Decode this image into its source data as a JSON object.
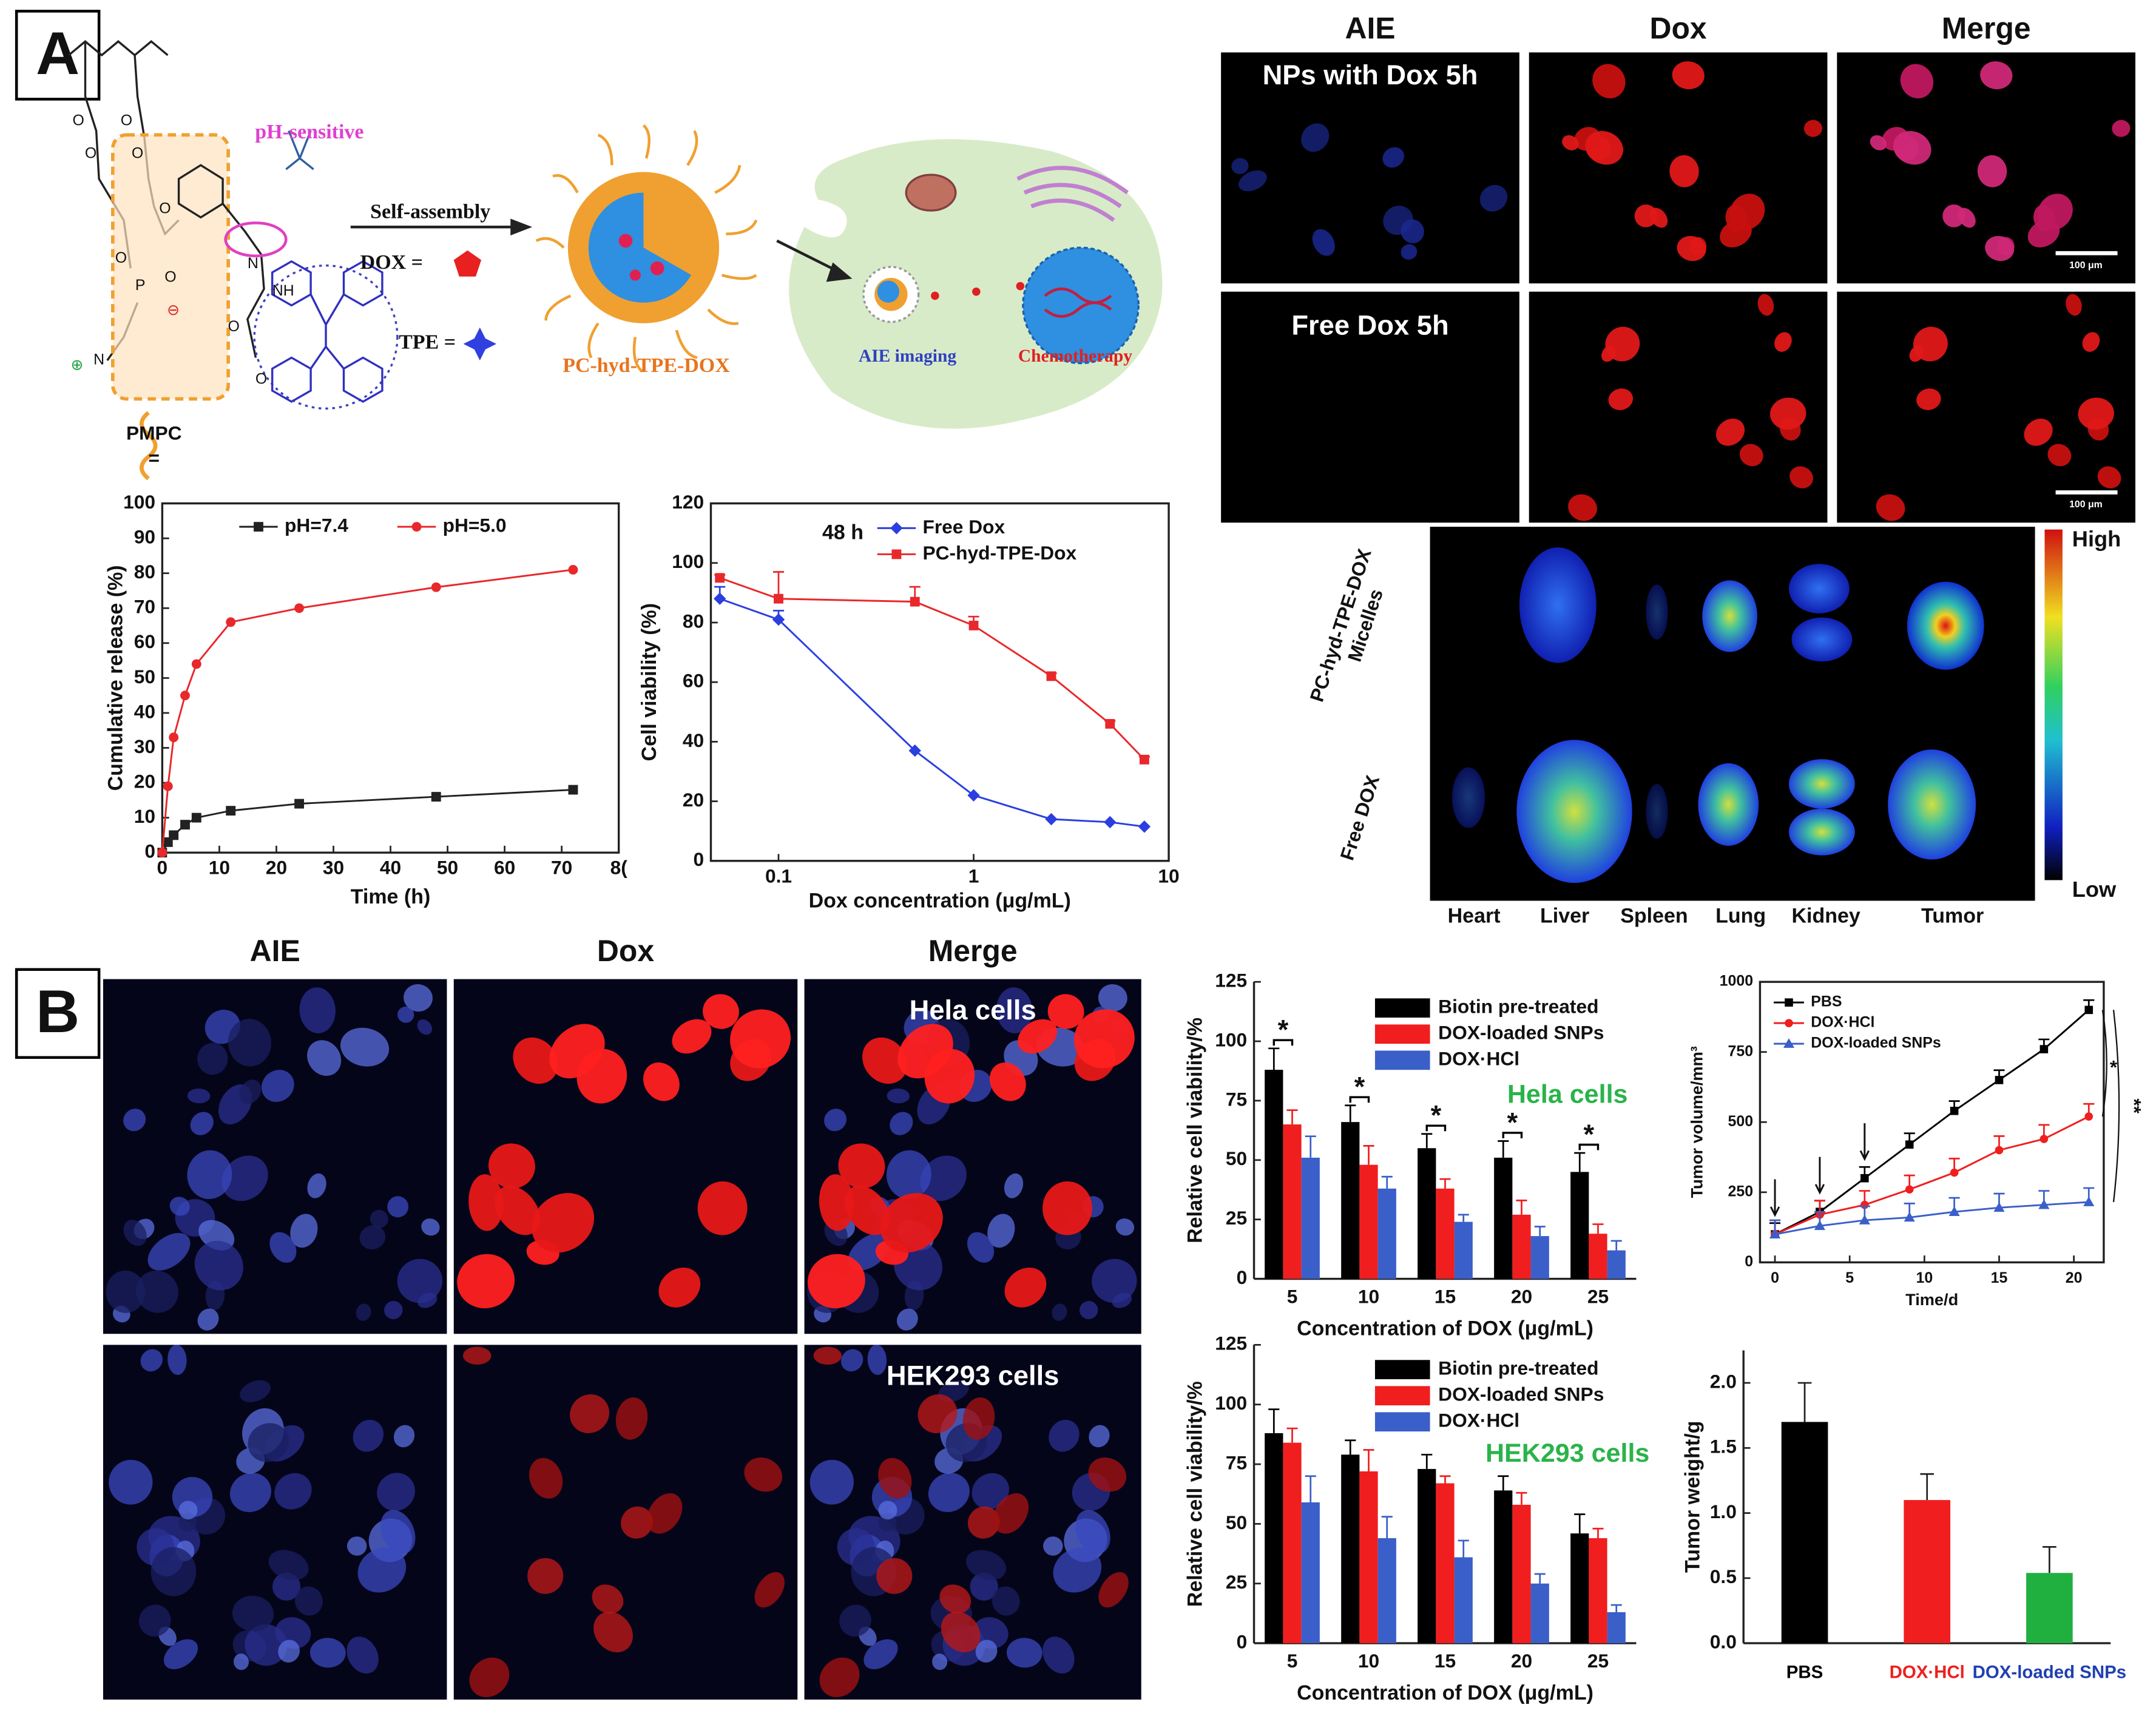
{
  "panel_labels": [
    "A",
    "B"
  ],
  "scheme": {
    "ph_label": "pH-sensitive",
    "assembly_label": "Self-assembly",
    "dox_label": "DOX =",
    "tpe_label": "TPE =",
    "polymer_label": "PMPC",
    "equals": "=",
    "micelle_label": "PC-hyd-TPE-DOX",
    "imaging_label": "AIE imaging",
    "therapy_label": "Chemotherapy",
    "atoms": [
      "O",
      "O",
      "O",
      "O",
      "P",
      "O",
      "O",
      "⊖",
      "N",
      "⊕",
      "O",
      "N",
      "NH",
      "O",
      "O"
    ]
  },
  "micrographs_a": {
    "columns": [
      "AIE",
      "Dox",
      "Merge"
    ],
    "rows": [
      "NPs with Dox 5h",
      "Free Dox 5h"
    ],
    "scale_bars": [
      "100 μm",
      "100 μm"
    ]
  },
  "biodistribution": {
    "row_labels": [
      [
        "PC-hyd-TPE-DOX",
        "Micelles"
      ],
      [
        "Free DOX"
      ]
    ],
    "organs": [
      "Heart",
      "Liver",
      "Spleen",
      "Lung",
      "Kidney",
      "Tumor"
    ],
    "colorbar": [
      "High",
      "Low"
    ]
  },
  "micrographs_b": {
    "columns": [
      "AIE",
      "Dox",
      "Merge"
    ],
    "rows": [
      "Hela cells",
      "HEK293 cells"
    ]
  },
  "chart_data": [
    {
      "type": "line",
      "xlabel": "Time (h)",
      "ylabel": "Cumulative release (%)",
      "x": [
        0,
        1,
        2,
        4,
        6,
        12,
        24,
        48,
        72
      ],
      "series": [
        {
          "name": "pH=7.4",
          "color": "#222222",
          "marker": "square",
          "values": [
            0,
            3,
            5,
            8,
            10,
            12,
            14,
            16,
            18
          ]
        },
        {
          "name": "pH=5.0",
          "color": "#e8282b",
          "marker": "circle",
          "values": [
            0,
            19,
            33,
            45,
            54,
            66,
            70,
            76,
            81
          ]
        }
      ],
      "xlim": [
        0,
        80
      ],
      "ylim": [
        0,
        100
      ],
      "xticks": [
        0,
        10,
        20,
        30,
        40,
        50,
        60,
        70,
        {
          "value": 80,
          "label": "8("
        }
      ],
      "yticks": [
        0,
        10,
        20,
        30,
        40,
        50,
        60,
        70,
        80,
        90,
        100
      ],
      "legend": "upper center"
    },
    {
      "type": "line",
      "xscale": "log",
      "annotation": "48 h",
      "xlabel": "Dox concentration (μg/mL)",
      "ylabel": "Cell viability (%)",
      "x": [
        0.05,
        0.1,
        0.5,
        1,
        2.5,
        5,
        7.5
      ],
      "series": [
        {
          "name": "Free Dox",
          "color": "#2b3fe0",
          "marker": "diamond",
          "values": [
            88,
            81,
            37,
            22,
            14,
            13,
            11.5
          ],
          "errors": [
            4,
            3,
            0,
            0,
            0,
            0,
            0
          ]
        },
        {
          "name": "PC-hyd-TPE-Dox",
          "color": "#e8282b",
          "marker": "square",
          "values": [
            95,
            88,
            87,
            79,
            62,
            46,
            34
          ],
          "errors": [
            1,
            9,
            5,
            3,
            1,
            1,
            1
          ]
        }
      ],
      "xlim": [
        0.045,
        10
      ],
      "ylim": [
        0,
        120
      ],
      "xticks": [
        0.1,
        1,
        10
      ],
      "yticks": [
        0,
        20,
        40,
        60,
        80,
        100,
        120
      ],
      "legend": "upper right"
    },
    {
      "type": "bar",
      "annotation": "Hela cells",
      "annotation_color": "#2bb34a",
      "xlabel": "Concentration of DOX (μg/mL)",
      "ylabel": "Relative cell viability/%",
      "categories": [
        "5",
        "10",
        "15",
        "20",
        "25"
      ],
      "series": [
        {
          "name": "Biotin pre-treated",
          "color": "#000000",
          "values": [
            88,
            66,
            55,
            51,
            45
          ],
          "errors": [
            9,
            7,
            6,
            7,
            8
          ]
        },
        {
          "name": "DOX-loaded SNPs",
          "color": "#f01e1e",
          "values": [
            65,
            48,
            38,
            27,
            19
          ],
          "errors": [
            6,
            8,
            4,
            6,
            4
          ]
        },
        {
          "name": "DOX·HCl",
          "color": "#3a5fc8",
          "values": [
            51,
            38,
            24,
            18,
            12
          ],
          "errors": [
            9,
            5,
            3,
            4,
            4
          ]
        }
      ],
      "ylim": [
        0,
        125
      ],
      "yticks": [
        0,
        25,
        50,
        75,
        100,
        125
      ],
      "legend": "upper right",
      "significance": [
        "*",
        "*",
        "*",
        "*",
        "*"
      ]
    },
    {
      "type": "bar",
      "annotation": "HEK293 cells",
      "annotation_color": "#2bb34a",
      "xlabel": "Concentration of DOX (μg/mL)",
      "ylabel": "Relative cell viability/%",
      "categories": [
        "5",
        "10",
        "15",
        "20",
        "25"
      ],
      "series": [
        {
          "name": "Biotin pre-treated",
          "color": "#000000",
          "values": [
            88,
            79,
            73,
            64,
            46
          ],
          "errors": [
            10,
            6,
            6,
            6,
            8
          ]
        },
        {
          "name": "DOX-loaded SNPs",
          "color": "#f01e1e",
          "values": [
            84,
            72,
            67,
            58,
            44
          ],
          "errors": [
            6,
            9,
            3,
            5,
            4
          ]
        },
        {
          "name": "DOX·HCl",
          "color": "#3a5fc8",
          "values": [
            59,
            44,
            36,
            25,
            13
          ],
          "errors": [
            11,
            9,
            7,
            4,
            3
          ]
        }
      ],
      "ylim": [
        0,
        125
      ],
      "yticks": [
        0,
        25,
        50,
        75,
        100,
        125
      ],
      "legend": "upper right"
    },
    {
      "type": "line",
      "xlabel": "Time/d",
      "ylabel": "Tumor volume/mm³",
      "x": [
        0,
        3,
        6,
        9,
        12,
        15,
        18,
        21
      ],
      "series": [
        {
          "name": "PBS",
          "color": "#000000",
          "marker": "square",
          "values": [
            100,
            180,
            300,
            420,
            540,
            650,
            760,
            900
          ],
          "errors": [
            40,
            40,
            40,
            40,
            35,
            35,
            35,
            35
          ]
        },
        {
          "name": "DOX·HCl",
          "color": "#f01e1e",
          "marker": "circle",
          "values": [
            100,
            170,
            205,
            260,
            320,
            400,
            440,
            520
          ],
          "errors": [
            50,
            50,
            50,
            50,
            50,
            50,
            50,
            45
          ]
        },
        {
          "name": "DOX-loaded SNPs",
          "color": "#3a5fc8",
          "marker": "triangle",
          "values": [
            100,
            130,
            150,
            160,
            180,
            195,
            205,
            215
          ],
          "errors": [
            50,
            50,
            50,
            50,
            50,
            50,
            50,
            50
          ]
        }
      ],
      "xlim": [
        -1,
        22
      ],
      "ylim": [
        0,
        1000
      ],
      "xticks": [
        0,
        5,
        10,
        15,
        20
      ],
      "yticks": [
        0,
        250,
        500,
        750,
        1000
      ],
      "legend": "upper left",
      "dose_days": [
        0,
        3,
        6
      ],
      "significance": [
        "*",
        "**"
      ]
    },
    {
      "type": "bar",
      "ylabel": "Tumor weight/g",
      "categories": [
        "PBS",
        "DOX·HCl",
        "DOX-loaded SNPs"
      ],
      "values": [
        1.7,
        1.1,
        0.54
      ],
      "errors": [
        0.3,
        0.2,
        0.2
      ],
      "colors": [
        "#000000",
        "#f01e1e",
        "#20b040"
      ],
      "category_colors": [
        "#000000",
        "#f01e1e",
        "#2040b0"
      ],
      "ylim": [
        0,
        2.25
      ],
      "yticks": [
        {
          "value": 0,
          "label": "0.0"
        },
        0.5,
        {
          "value": 1,
          "label": "1.0"
        },
        1.5,
        {
          "value": 2,
          "label": "2.0"
        }
      ]
    }
  ]
}
